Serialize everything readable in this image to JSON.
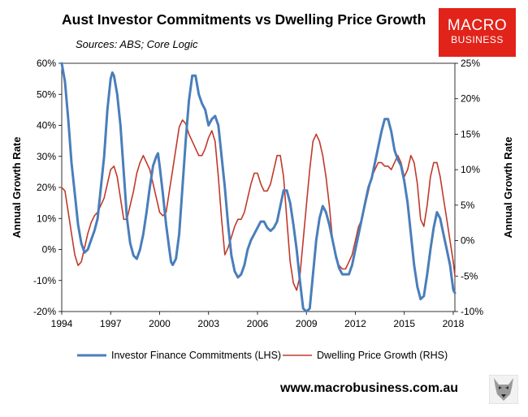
{
  "header": {
    "title": "Aust Investor Commitments vs Dwelling Price Growth",
    "sources": "Sources: ABS; Core Logic"
  },
  "logo": {
    "line1": "MACRO",
    "line2": "BUSINESS"
  },
  "footer": {
    "website": "www.macrobusiness.com.au"
  },
  "colors": {
    "investor": "#4a7ebb",
    "dwelling": "#c0392b",
    "logo_bg": "#e2231a"
  },
  "icons": {
    "mascot": "wolf-icon"
  },
  "chart_data": {
    "type": "line",
    "xlim": [
      1994,
      2018.1
    ],
    "x_ticks": [
      "1994",
      "1997",
      "2000",
      "2003",
      "2006",
      "2009",
      "2012",
      "2015",
      "2018"
    ],
    "y_left": {
      "label": "Annual Growth Rate",
      "lim": [
        -20,
        60
      ],
      "ticks": [
        "60%",
        "50%",
        "40%",
        "30%",
        "20%",
        "10%",
        "0%",
        "-10%",
        "-20%"
      ]
    },
    "y_right": {
      "label": "Annual Growth Rate",
      "lim": [
        -10,
        25
      ],
      "ticks": [
        "25%",
        "20%",
        "15%",
        "10%",
        "5%",
        "0%",
        "-5%",
        "-10%"
      ]
    },
    "series": [
      {
        "name": "Investor Finance Commitments (LHS)",
        "axis": "left",
        "color": "#4a7ebb",
        "points": [
          [
            1994.0,
            60
          ],
          [
            1994.2,
            54
          ],
          [
            1994.4,
            42
          ],
          [
            1994.6,
            28
          ],
          [
            1994.8,
            18
          ],
          [
            1995.0,
            8
          ],
          [
            1995.2,
            2
          ],
          [
            1995.4,
            -1
          ],
          [
            1995.6,
            0
          ],
          [
            1995.8,
            3
          ],
          [
            1996.0,
            6
          ],
          [
            1996.2,
            10
          ],
          [
            1996.4,
            20
          ],
          [
            1996.6,
            30
          ],
          [
            1996.8,
            45
          ],
          [
            1997.0,
            55
          ],
          [
            1997.1,
            57
          ],
          [
            1997.2,
            56
          ],
          [
            1997.4,
            50
          ],
          [
            1997.6,
            40
          ],
          [
            1997.8,
            25
          ],
          [
            1998.0,
            10
          ],
          [
            1998.2,
            2
          ],
          [
            1998.4,
            -2
          ],
          [
            1998.6,
            -3
          ],
          [
            1998.8,
            0
          ],
          [
            1999.0,
            5
          ],
          [
            1999.2,
            12
          ],
          [
            1999.4,
            20
          ],
          [
            1999.6,
            27
          ],
          [
            1999.8,
            30
          ],
          [
            1999.9,
            31
          ],
          [
            2000.0,
            27
          ],
          [
            2000.2,
            18
          ],
          [
            2000.4,
            8
          ],
          [
            2000.6,
            0
          ],
          [
            2000.7,
            -4
          ],
          [
            2000.8,
            -5
          ],
          [
            2001.0,
            -3
          ],
          [
            2001.2,
            5
          ],
          [
            2001.4,
            20
          ],
          [
            2001.6,
            35
          ],
          [
            2001.8,
            48
          ],
          [
            2002.0,
            56
          ],
          [
            2002.2,
            56
          ],
          [
            2002.4,
            50
          ],
          [
            2002.6,
            47
          ],
          [
            2002.8,
            45
          ],
          [
            2003.0,
            40
          ],
          [
            2003.2,
            42
          ],
          [
            2003.4,
            43
          ],
          [
            2003.6,
            40
          ],
          [
            2003.8,
            30
          ],
          [
            2004.0,
            20
          ],
          [
            2004.2,
            8
          ],
          [
            2004.4,
            -2
          ],
          [
            2004.6,
            -7
          ],
          [
            2004.8,
            -9
          ],
          [
            2005.0,
            -8
          ],
          [
            2005.2,
            -5
          ],
          [
            2005.4,
            0
          ],
          [
            2005.6,
            3
          ],
          [
            2005.8,
            5
          ],
          [
            2006.0,
            7
          ],
          [
            2006.2,
            9
          ],
          [
            2006.4,
            9
          ],
          [
            2006.6,
            7
          ],
          [
            2006.8,
            6
          ],
          [
            2007.0,
            7
          ],
          [
            2007.2,
            9
          ],
          [
            2007.4,
            14
          ],
          [
            2007.6,
            19
          ],
          [
            2007.8,
            19
          ],
          [
            2008.0,
            15
          ],
          [
            2008.2,
            8
          ],
          [
            2008.4,
            0
          ],
          [
            2008.6,
            -10
          ],
          [
            2008.8,
            -19
          ],
          [
            2009.0,
            -20
          ],
          [
            2009.2,
            -19
          ],
          [
            2009.4,
            -8
          ],
          [
            2009.6,
            3
          ],
          [
            2009.8,
            10
          ],
          [
            2010.0,
            14
          ],
          [
            2010.2,
            12
          ],
          [
            2010.4,
            8
          ],
          [
            2010.6,
            3
          ],
          [
            2010.8,
            -2
          ],
          [
            2011.0,
            -6
          ],
          [
            2011.2,
            -8
          ],
          [
            2011.4,
            -8
          ],
          [
            2011.6,
            -8
          ],
          [
            2011.8,
            -5
          ],
          [
            2012.0,
            0
          ],
          [
            2012.2,
            5
          ],
          [
            2012.4,
            10
          ],
          [
            2012.6,
            15
          ],
          [
            2012.8,
            20
          ],
          [
            2013.0,
            23
          ],
          [
            2013.2,
            28
          ],
          [
            2013.4,
            33
          ],
          [
            2013.6,
            38
          ],
          [
            2013.8,
            42
          ],
          [
            2014.0,
            42
          ],
          [
            2014.2,
            38
          ],
          [
            2014.4,
            32
          ],
          [
            2014.6,
            29
          ],
          [
            2014.8,
            27
          ],
          [
            2015.0,
            22
          ],
          [
            2015.2,
            15
          ],
          [
            2015.4,
            5
          ],
          [
            2015.6,
            -5
          ],
          [
            2015.8,
            -12
          ],
          [
            2016.0,
            -16
          ],
          [
            2016.2,
            -15
          ],
          [
            2016.4,
            -8
          ],
          [
            2016.6,
            0
          ],
          [
            2016.8,
            7
          ],
          [
            2017.0,
            12
          ],
          [
            2017.2,
            10
          ],
          [
            2017.4,
            5
          ],
          [
            2017.6,
            0
          ],
          [
            2017.8,
            -5
          ],
          [
            2018.0,
            -13
          ],
          [
            2018.1,
            -14
          ]
        ]
      },
      {
        "name": "Dwelling Price Growth (RHS)",
        "axis": "right",
        "color": "#c0392b",
        "points": [
          [
            1994.0,
            7.5
          ],
          [
            1994.2,
            7
          ],
          [
            1994.4,
            4
          ],
          [
            1994.6,
            1
          ],
          [
            1994.8,
            -2
          ],
          [
            1995.0,
            -3.5
          ],
          [
            1995.2,
            -3
          ],
          [
            1995.4,
            -1
          ],
          [
            1995.6,
            1
          ],
          [
            1995.8,
            2.5
          ],
          [
            1996.0,
            3.5
          ],
          [
            1996.2,
            4
          ],
          [
            1996.4,
            5
          ],
          [
            1996.6,
            6
          ],
          [
            1996.8,
            8
          ],
          [
            1997.0,
            10
          ],
          [
            1997.2,
            10.5
          ],
          [
            1997.4,
            9
          ],
          [
            1997.6,
            6
          ],
          [
            1997.8,
            3
          ],
          [
            1998.0,
            3
          ],
          [
            1998.2,
            5
          ],
          [
            1998.4,
            7
          ],
          [
            1998.6,
            9.5
          ],
          [
            1998.8,
            11
          ],
          [
            1999.0,
            12
          ],
          [
            1999.2,
            11
          ],
          [
            1999.4,
            10
          ],
          [
            1999.6,
            8
          ],
          [
            1999.8,
            6
          ],
          [
            2000.0,
            4
          ],
          [
            2000.2,
            3.5
          ],
          [
            2000.4,
            4
          ],
          [
            2000.6,
            7
          ],
          [
            2000.8,
            10
          ],
          [
            2001.0,
            13
          ],
          [
            2001.2,
            16
          ],
          [
            2001.4,
            17
          ],
          [
            2001.6,
            16.5
          ],
          [
            2001.8,
            15
          ],
          [
            2002.0,
            14
          ],
          [
            2002.2,
            13
          ],
          [
            2002.4,
            12
          ],
          [
            2002.6,
            12
          ],
          [
            2002.8,
            13
          ],
          [
            2003.0,
            14.5
          ],
          [
            2003.2,
            15.5
          ],
          [
            2003.4,
            14
          ],
          [
            2003.6,
            9
          ],
          [
            2003.8,
            3
          ],
          [
            2004.0,
            -2
          ],
          [
            2004.2,
            -1
          ],
          [
            2004.4,
            0.5
          ],
          [
            2004.6,
            2
          ],
          [
            2004.8,
            3
          ],
          [
            2005.0,
            3
          ],
          [
            2005.2,
            4
          ],
          [
            2005.4,
            6
          ],
          [
            2005.6,
            8
          ],
          [
            2005.8,
            9.5
          ],
          [
            2006.0,
            9.5
          ],
          [
            2006.2,
            8
          ],
          [
            2006.4,
            7
          ],
          [
            2006.6,
            7
          ],
          [
            2006.8,
            8
          ],
          [
            2007.0,
            10
          ],
          [
            2007.2,
            12
          ],
          [
            2007.4,
            12
          ],
          [
            2007.6,
            9
          ],
          [
            2007.8,
            3
          ],
          [
            2008.0,
            -3
          ],
          [
            2008.2,
            -6
          ],
          [
            2008.4,
            -7
          ],
          [
            2008.6,
            -5
          ],
          [
            2008.8,
            0
          ],
          [
            2009.0,
            5
          ],
          [
            2009.2,
            10
          ],
          [
            2009.4,
            14
          ],
          [
            2009.6,
            15
          ],
          [
            2009.8,
            14
          ],
          [
            2010.0,
            12
          ],
          [
            2010.2,
            9
          ],
          [
            2010.4,
            5
          ],
          [
            2010.6,
            0
          ],
          [
            2010.8,
            -2.5
          ],
          [
            2011.0,
            -3.5
          ],
          [
            2011.2,
            -4
          ],
          [
            2011.4,
            -4
          ],
          [
            2011.6,
            -3
          ],
          [
            2011.8,
            -2
          ],
          [
            2012.0,
            0
          ],
          [
            2012.2,
            2
          ],
          [
            2012.4,
            3
          ],
          [
            2012.6,
            5
          ],
          [
            2012.8,
            7
          ],
          [
            2013.0,
            9
          ],
          [
            2013.2,
            10
          ],
          [
            2013.4,
            11
          ],
          [
            2013.6,
            11
          ],
          [
            2013.8,
            10.5
          ],
          [
            2014.0,
            10.5
          ],
          [
            2014.2,
            10
          ],
          [
            2014.4,
            11
          ],
          [
            2014.6,
            12
          ],
          [
            2014.8,
            11
          ],
          [
            2015.0,
            9
          ],
          [
            2015.2,
            10
          ],
          [
            2015.4,
            12
          ],
          [
            2015.6,
            11
          ],
          [
            2015.8,
            8
          ],
          [
            2016.0,
            3
          ],
          [
            2016.2,
            2
          ],
          [
            2016.4,
            5
          ],
          [
            2016.6,
            9
          ],
          [
            2016.8,
            11
          ],
          [
            2017.0,
            11
          ],
          [
            2017.2,
            9
          ],
          [
            2017.4,
            6
          ],
          [
            2017.6,
            3
          ],
          [
            2017.8,
            0
          ],
          [
            2018.0,
            -3
          ],
          [
            2018.1,
            -5
          ]
        ]
      }
    ],
    "legend_position": "bottom"
  }
}
